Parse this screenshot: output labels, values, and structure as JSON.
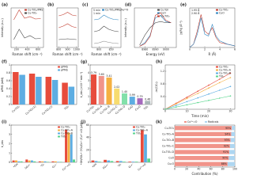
{
  "chart_data": [
    {
      "type": "line",
      "panel": "(a)",
      "x_label": "Raman shift (cm⁻¹)",
      "y_label": "Intensity (a.u.)",
      "x": [
        150,
        250,
        350,
        450,
        550,
        650
      ],
      "xlim": [
        100,
        700
      ],
      "xticks": [
        200,
        400,
        600
      ],
      "ylim": [
        0,
        10
      ],
      "series": [
        {
          "name": "Cu-TiO₂/PMS",
          "color": "#c0392b",
          "values": [
            7,
            9.5,
            7.4,
            7.8,
            7.2,
            7.3
          ]
        },
        {
          "name": "Cu-TiO₂",
          "color": "#444444",
          "values": [
            2,
            4.6,
            2.4,
            3,
            2.2,
            2.3
          ]
        }
      ]
    },
    {
      "type": "line",
      "panel": "(b)",
      "x_label": "Raman shift (cm⁻¹)",
      "x": [
        800,
        850,
        900,
        950,
        1000
      ],
      "xlim": [
        780,
        1020
      ],
      "xticks": [
        800,
        900,
        1000
      ],
      "ylim": [
        0,
        10
      ],
      "series": [
        {
          "color": "#c0392b",
          "values": [
            8,
            8.3,
            8.9,
            8.2,
            8
          ]
        },
        {
          "color": "#c0392b",
          "values": [
            5,
            5.4,
            6,
            5.3,
            5
          ]
        },
        {
          "color": "#444444",
          "values": [
            2,
            2.1,
            2.2,
            2.1,
            2
          ]
        }
      ]
    },
    {
      "type": "line",
      "panel": "(c)",
      "x_label": "Raman shift (cm⁻¹)",
      "x": [
        780,
        800,
        820,
        840,
        860,
        880
      ],
      "xlim": [
        770,
        890
      ],
      "xticks": [
        800,
        850
      ],
      "ylim": [
        0,
        10
      ],
      "series": [
        {
          "name": "Cu-TiO₂/PMS/H₂¹⁸O",
          "color": "#2e86c1",
          "values": [
            7,
            7.2,
            8.2,
            7.5,
            7.1,
            7
          ]
        },
        {
          "color": "#444444",
          "values": [
            4,
            4.3,
            5.4,
            4.6,
            4.2,
            4
          ]
        },
        {
          "color": "#888888",
          "values": [
            1,
            1.2,
            1.6,
            1.3,
            1.1,
            1
          ]
        }
      ],
      "annotations": [
        "5 min",
        "1 min"
      ]
    },
    {
      "type": "line",
      "panel": "(d)",
      "x_label": "Energy (eV)",
      "y_label": "Intensity (a.u.)",
      "x": [
        8975,
        8980,
        8985,
        8990,
        8995,
        9000,
        9005
      ],
      "xlim": [
        8970,
        9010
      ],
      "xticks": [
        8980,
        8990,
        9000
      ],
      "ylim": [
        0,
        1.6
      ],
      "series": [
        {
          "name": "Cu foil",
          "color": "#444444",
          "values": [
            0.1,
            0.5,
            0.8,
            1.0,
            1.05,
            1.0,
            1.0
          ]
        },
        {
          "name": "CuO",
          "color": "#2e86c1",
          "values": [
            0.05,
            0.2,
            0.5,
            1.2,
            1.3,
            1.05,
            1.0
          ]
        },
        {
          "name": "Cu-TiO₂",
          "color": "#c0392b",
          "values": [
            0.05,
            0.15,
            0.45,
            1.3,
            1.4,
            1.1,
            1.0
          ]
        }
      ]
    },
    {
      "type": "line",
      "panel": "(e)",
      "x_label": "R (Å)",
      "y_label": "|χ(R)| (Å⁻³)",
      "x": [
        0,
        0.5,
        1,
        1.5,
        2,
        2.5,
        3,
        3.5,
        4,
        5,
        6
      ],
      "xlim": [
        0,
        6
      ],
      "xticks": [
        0,
        2,
        4,
        6
      ],
      "ylim": [
        0,
        1.2
      ],
      "series": [
        {
          "name": "Cu-TiO₂",
          "color": "#c0392b",
          "values": [
            0,
            0.1,
            0.5,
            1.0,
            0.5,
            0.4,
            0.6,
            0.3,
            0.15,
            0.1,
            0.05
          ]
        },
        {
          "name": "CuO",
          "color": "#2e86c1",
          "values": [
            0,
            0.1,
            0.4,
            0.9,
            0.4,
            0.35,
            0.7,
            0.35,
            0.2,
            0.1,
            0.05
          ]
        }
      ],
      "annotations": [
        "1.95 Å",
        "2.90 Å"
      ]
    },
    {
      "type": "bar",
      "panel": "(f)",
      "y_label": "ΔPMS (mM)",
      "categories": [
        "Cu-TiO₂",
        "Cu-TiO₂(1)",
        "Cu-TiO₂(2)",
        "TiO₂"
      ],
      "ylim": [
        0,
        1
      ],
      "yticks": [
        0,
        0.2,
        0.4,
        0.6,
        0.8,
        1
      ],
      "series": [
        {
          "name": "ΔPMS",
          "color": "#e74c3c",
          "values": [
            0.82,
            0.78,
            0.7,
            0.55
          ]
        },
        {
          "name": "ρPMS",
          "color": "#5dade2",
          "values": [
            0.75,
            0.7,
            0.62,
            0.45
          ]
        }
      ]
    },
    {
      "type": "bar",
      "panel": "(g)",
      "y_label": "k_obs (×10⁻² min⁻¹)",
      "categories": [
        "Cu-TiO₂",
        "Cu-TiO₂-A",
        "Cu-TiO₂-B",
        "Cu-TiO₂-C",
        "Cu-TiO₂-D",
        "CuO",
        "Cu₂O",
        "TiO₂"
      ],
      "ylim": [
        0,
        5
      ],
      "yticks": [
        0,
        1,
        2,
        3,
        4,
        5
      ],
      "series": [
        {
          "colors": [
            "#e74c3c",
            "#f1948a",
            "#f5b041",
            "#f7dc6f",
            "#82e0aa",
            "#5dade2",
            "#a569bd",
            "#aab7b8"
          ],
          "values": [
            3.79,
            3.6,
            3.41,
            2.02,
            1.4,
            0.99,
            0.79,
            0.46
          ],
          "value_labels": [
            "3.79",
            "3.60",
            "3.41",
            "2.02",
            "1.40",
            "0.99",
            "0.79",
            "0.46"
          ]
        }
      ]
    },
    {
      "type": "line",
      "panel": "(h)",
      "x_label": "Time (min)",
      "y_label": "-ln(C/C₀)",
      "markers": true,
      "x": [
        0,
        5,
        10,
        15,
        20,
        25,
        30
      ],
      "xlim": [
        0,
        32
      ],
      "xticks": [
        0,
        10,
        20,
        30
      ],
      "ylim": [
        0,
        1.4
      ],
      "yticks": [
        0,
        0.4,
        0.8,
        1.2
      ],
      "series": [
        {
          "name": "Cu-TiO₂",
          "color": "#e74c3c",
          "values": [
            0,
            0.19,
            0.38,
            0.57,
            0.76,
            0.95,
            1.14
          ]
        },
        {
          "name": "Cu-TiO₂-A",
          "color": "#f5b041",
          "values": [
            0,
            0.17,
            0.34,
            0.5,
            0.67,
            0.84,
            1.0
          ]
        },
        {
          "name": "Cu-TiO₂-B",
          "color": "#5dade2",
          "values": [
            0,
            0.12,
            0.24,
            0.36,
            0.48,
            0.6,
            0.72
          ]
        },
        {
          "name": "TiO₂",
          "color": "#58d68d",
          "values": [
            0,
            0.07,
            0.14,
            0.21,
            0.28,
            0.35,
            0.42
          ]
        }
      ]
    },
    {
      "type": "bar",
      "panel": "(i)",
      "y_label": "k_obs",
      "categories": [
        "•OH",
        "SO₄•⁻",
        "¹O₂",
        "O₂•⁻",
        "Cu³⁺=O"
      ],
      "ylim": [
        0,
        4
      ],
      "yticks": [
        0,
        1,
        2,
        3,
        4
      ],
      "series": [
        {
          "name": "Cu-TiO₂",
          "color": "#e74c3c",
          "values": [
            0.2,
            0.3,
            0.1,
            0.1,
            3.5
          ]
        },
        {
          "name": "Cu-TiO₂-A",
          "color": "#f5b041",
          "values": [
            0.2,
            0.2,
            0.1,
            0.1,
            3.2
          ]
        },
        {
          "name": "Cu-TiO₂-B",
          "color": "#5dade2",
          "values": [
            0.1,
            0.2,
            0.1,
            0.05,
            3.0
          ]
        },
        {
          "name": "TiO₂",
          "color": "#58d68d",
          "values": [
            0.1,
            0.1,
            0.05,
            0.05,
            0.3
          ]
        }
      ]
    },
    {
      "type": "bar",
      "panel": "(j)",
      "y_label": "•OH/SO₄•⁻/¹O₂/O₂•⁻/Cu³⁺=O (μM)",
      "categories": [
        "•OH",
        "SO₄•⁻",
        "¹O₂",
        "O₂•⁻",
        "Cu³⁺=O"
      ],
      "ylim": [
        0,
        60
      ],
      "yticks": [
        0,
        20,
        40,
        60
      ],
      "series": [
        {
          "name": "Cu-TiO₂",
          "color": "#e74c3c",
          "values": [
            3,
            4,
            2,
            1,
            52
          ]
        },
        {
          "name": "Cu-TiO₂-A",
          "color": "#5dade2",
          "values": [
            2,
            3,
            2,
            1,
            45
          ]
        },
        {
          "name": "TiO₂",
          "color": "#58d68d",
          "values": [
            1,
            2,
            1,
            1,
            6
          ]
        }
      ]
    },
    {
      "type": "hbar_stacked",
      "panel": "(k)",
      "x_label": "Contribution (%)",
      "categories": [
        "Cu-TiO₂",
        "Cu-TiO₂-A",
        "Cu-TiO₂-B",
        "Cu-TiO₂-C",
        "Cu-TiO₂-D",
        "CuO",
        "Cu₂O"
      ],
      "xlim": [
        0,
        100
      ],
      "xticks": [
        0,
        20,
        40,
        60,
        80,
        100
      ],
      "series": [
        {
          "name": "Cu³⁺=O",
          "color": "#f1948a",
          "values": [
            95,
            94,
            93,
            92,
            91,
            90,
            88
          ],
          "value_labels": [
            "95%",
            "94%",
            "93%",
            "92%",
            "91%",
            "90%",
            "88%"
          ]
        },
        {
          "name": "Radicals",
          "color": "#aed6f1",
          "values": [
            5,
            6,
            7,
            8,
            9,
            10,
            12
          ]
        }
      ]
    }
  ]
}
